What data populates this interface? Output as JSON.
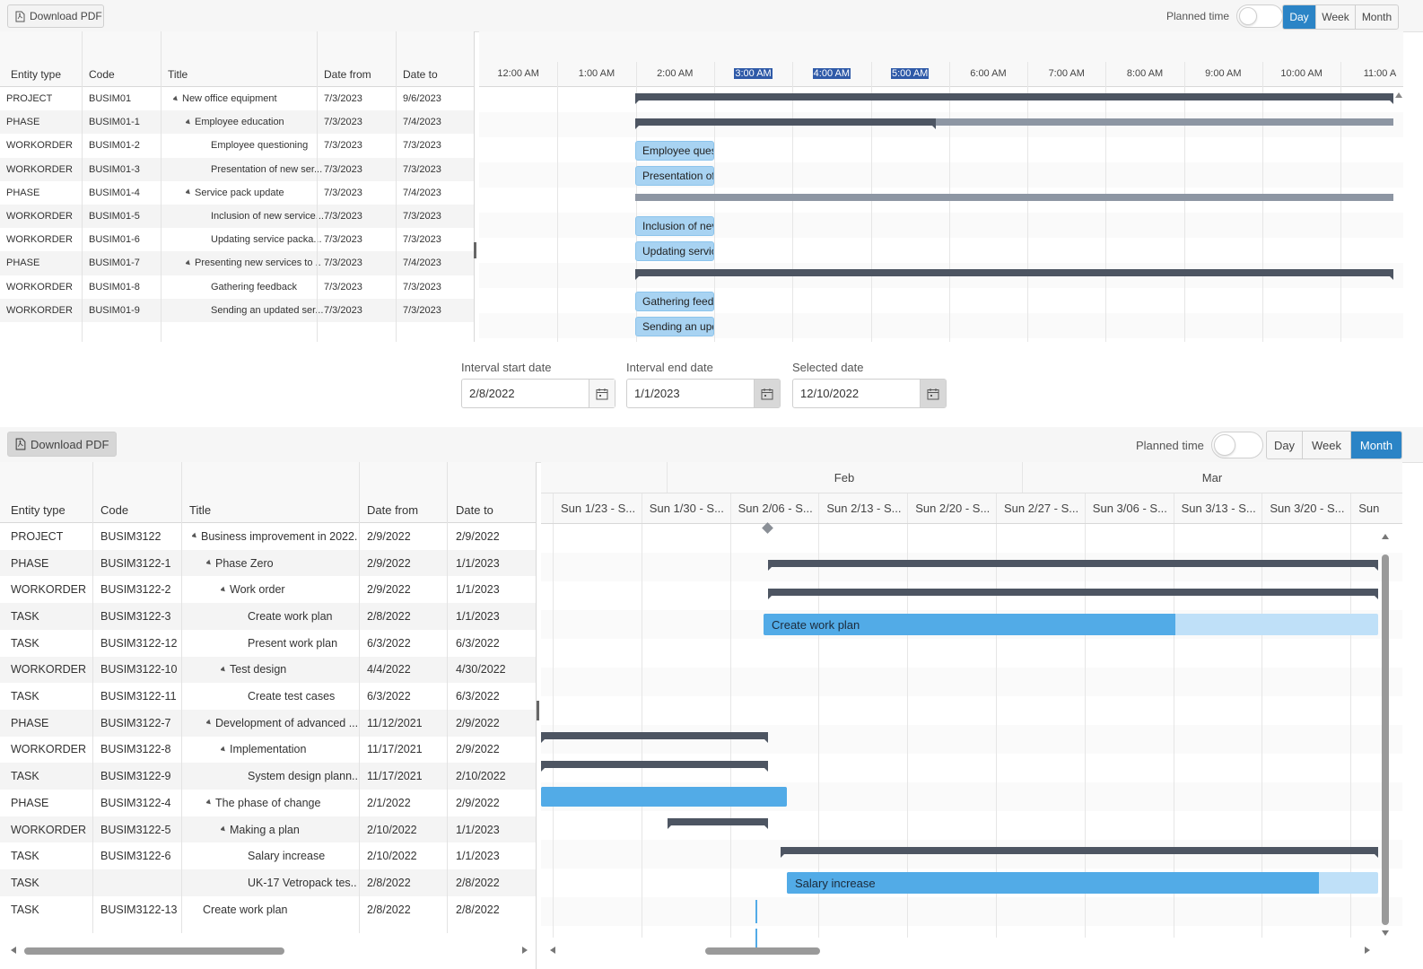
{
  "top": {
    "toolbar": {
      "download_label": "Download PDF",
      "planned_time_label": "Planned time",
      "views": [
        "Day",
        "Week",
        "Month"
      ],
      "active_view": "Day"
    },
    "columns": [
      "Entity type",
      "Code",
      "Title",
      "Date from",
      "Date to"
    ],
    "rows": [
      {
        "type": "PROJECT",
        "code": "BUSIM01",
        "title": "New office equipment",
        "from": "7/3/2023",
        "to": "9/6/2023",
        "expander": true
      },
      {
        "type": "PHASE",
        "code": "BUSIM01-1",
        "title": "Employee education",
        "from": "7/3/2023",
        "to": "7/4/2023",
        "expander": true
      },
      {
        "type": "WORKORDER",
        "code": "BUSIM01-2",
        "title": "Employee questioning",
        "from": "7/3/2023",
        "to": "7/3/2023",
        "expander": false
      },
      {
        "type": "WORKORDER",
        "code": "BUSIM01-3",
        "title": "Presentation of new ser...",
        "from": "7/3/2023",
        "to": "7/3/2023",
        "expander": false
      },
      {
        "type": "PHASE",
        "code": "BUSIM01-4",
        "title": "Service pack update",
        "from": "7/3/2023",
        "to": "7/4/2023",
        "expander": true
      },
      {
        "type": "WORKORDER",
        "code": "BUSIM01-5",
        "title": "Inclusion of new service...",
        "from": "7/3/2023",
        "to": "7/3/2023",
        "expander": false
      },
      {
        "type": "WORKORDER",
        "code": "BUSIM01-6",
        "title": "Updating service packa...",
        "from": "7/3/2023",
        "to": "7/3/2023",
        "expander": false
      },
      {
        "type": "PHASE",
        "code": "BUSIM01-7",
        "title": "Presenting new services to ...",
        "from": "7/3/2023",
        "to": "7/4/2023",
        "expander": true
      },
      {
        "type": "WORKORDER",
        "code": "BUSIM01-8",
        "title": "Gathering feedback",
        "from": "7/3/2023",
        "to": "7/3/2023",
        "expander": false
      },
      {
        "type": "WORKORDER",
        "code": "BUSIM01-9",
        "title": "Sending an updated ser...",
        "from": "7/3/2023",
        "to": "7/3/2023",
        "expander": false
      }
    ],
    "timeline": [
      "12:00 AM",
      "1:00 AM",
      "2:00 AM",
      "3:00 AM",
      "4:00 AM",
      "5:00 AM",
      "6:00 AM",
      "7:00 AM",
      "8:00 AM",
      "9:00 AM",
      "10:00 AM",
      "11:00 A"
    ],
    "task_labels": [
      "Employee ques",
      "Presentation of",
      "Inclusion of nev",
      "Updating servic",
      "Gathering feedl",
      "Sending an upd"
    ]
  },
  "filters": {
    "start": {
      "label": "Interval start date",
      "value": "2/8/2022"
    },
    "end": {
      "label": "Interval end date",
      "value": "1/1/2023"
    },
    "selected": {
      "label": "Selected date",
      "value": "12/10/2022"
    }
  },
  "bottom": {
    "toolbar": {
      "download_label": "Download PDF",
      "planned_time_label": "Planned time",
      "views": [
        "Day",
        "Week",
        "Month"
      ],
      "active_view": "Month"
    },
    "columns": [
      "Entity type",
      "Code",
      "Title",
      "Date from",
      "Date to"
    ],
    "rows": [
      {
        "type": "PROJECT",
        "code": "BUSIM3122",
        "title": "Business improvement in 2022.",
        "from": "2/9/2022",
        "to": "2/9/2022"
      },
      {
        "type": "PHASE",
        "code": "BUSIM3122-1",
        "title": "Phase Zero",
        "from": "2/9/2022",
        "to": "1/1/2023"
      },
      {
        "type": "WORKORDER",
        "code": "BUSIM3122-2",
        "title": "Work order",
        "from": "2/9/2022",
        "to": "1/1/2023"
      },
      {
        "type": "TASK",
        "code": "BUSIM3122-3",
        "title": "Create work plan",
        "from": "2/8/2022",
        "to": "1/1/2023"
      },
      {
        "type": "TASK",
        "code": "BUSIM3122-12",
        "title": "Present work plan",
        "from": "6/3/2022",
        "to": "6/3/2022"
      },
      {
        "type": "WORKORDER",
        "code": "BUSIM3122-10",
        "title": "Test design",
        "from": "4/4/2022",
        "to": "4/30/2022"
      },
      {
        "type": "TASK",
        "code": "BUSIM3122-11",
        "title": "Create test cases",
        "from": "6/3/2022",
        "to": "6/3/2022"
      },
      {
        "type": "PHASE",
        "code": "BUSIM3122-7",
        "title": "Development of advanced ...",
        "from": "11/12/2021",
        "to": "2/9/2022"
      },
      {
        "type": "WORKORDER",
        "code": "BUSIM3122-8",
        "title": "Implementation",
        "from": "11/17/2021",
        "to": "2/9/2022"
      },
      {
        "type": "TASK",
        "code": "BUSIM3122-9",
        "title": "System design plann...",
        "from": "11/17/2021",
        "to": "2/10/2022"
      },
      {
        "type": "PHASE",
        "code": "BUSIM3122-4",
        "title": "The phase of change",
        "from": "2/1/2022",
        "to": "2/9/2022"
      },
      {
        "type": "WORKORDER",
        "code": "BUSIM3122-5",
        "title": "Making a plan",
        "from": "2/10/2022",
        "to": "1/1/2023"
      },
      {
        "type": "TASK",
        "code": "BUSIM3122-6",
        "title": "Salary increase",
        "from": "2/10/2022",
        "to": "1/1/2023"
      },
      {
        "type": "TASK",
        "code": "",
        "title": "UK-17 Vetropack tes...",
        "from": "2/8/2022",
        "to": "2/8/2022"
      },
      {
        "type": "TASK",
        "code": "BUSIM3122-13",
        "title": "Create work plan",
        "from": "2/8/2022",
        "to": "2/8/2022"
      }
    ],
    "months": [
      "Feb",
      "Mar"
    ],
    "weeks": [
      "Sun 1/23 - S...",
      "Sun 1/30 - S...",
      "Sun 2/06 - S...",
      "Sun 2/13 - S...",
      "Sun 2/20 - S...",
      "Sun 2/27 - S...",
      "Sun 3/06 - S...",
      "Sun 3/13 - S...",
      "Sun 3/20 - S...",
      "Sun"
    ],
    "task_labels": {
      "create_work_plan": "Create work plan",
      "salary_increase": "Salary increase"
    },
    "progress": {
      "create_work_plan": 0.67,
      "salary_increase": 0.9
    }
  },
  "colors": {
    "accent": "#2b84c6",
    "summary_bar": "#4d5562",
    "task_fill": "#52abe7",
    "task_track": "#bfe0f8"
  }
}
